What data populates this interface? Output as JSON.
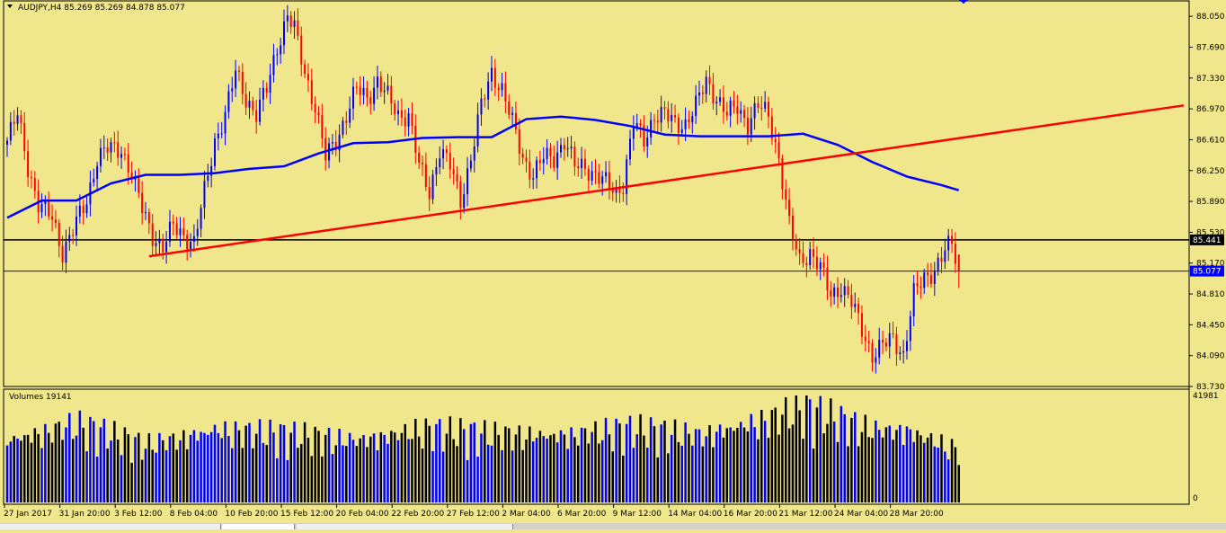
{
  "window": {
    "symbol_header": "AUDJPY,H4  85.269 85.269 84.878 85.077",
    "volume_header": "Volumes 19141"
  },
  "colors": {
    "background": "#f0e68c",
    "bull": "#0000ff",
    "bear": "#ff0000",
    "ma": "#0000ff",
    "trendline": "#ff0000",
    "hline": "#000000",
    "vol_up": "#0000ff",
    "vol_down": "#000000"
  },
  "chart_data": [
    {
      "type": "candlestick",
      "symbol": "AUDJPY",
      "timeframe": "H4",
      "ohlc_header": {
        "open": 85.269,
        "high": 85.269,
        "low": 84.878,
        "close": 85.077
      },
      "y_ticks": [
        "88.050",
        "87.690",
        "87.330",
        "86.970",
        "86.610",
        "86.250",
        "85.890",
        "85.530",
        "85.170",
        "84.810",
        "84.450",
        "84.090",
        "83.730"
      ],
      "ylim": [
        83.73,
        88.23
      ],
      "price_labels": [
        {
          "label": "85.441",
          "value": 85.441,
          "style": "black"
        },
        {
          "label": "85.077",
          "value": 85.077,
          "style": "blue"
        }
      ],
      "x_labels": [
        "27 Jan 2017",
        "31 Jan 20:00",
        "3 Feb 12:00",
        "8 Feb 04:00",
        "10 Feb 20:00",
        "15 Feb 12:00",
        "20 Feb 04:00",
        "22 Feb 20:00",
        "27 Feb 12:00",
        "2 Mar 04:00",
        "6 Mar 20:00",
        "9 Mar 12:00",
        "14 Mar 04:00",
        "16 Mar 20:00",
        "21 Mar 12:00",
        "24 Mar 04:00",
        "28 Mar 20:00"
      ],
      "x_label_index": [
        0,
        16,
        32,
        48,
        64,
        80,
        96,
        112,
        128,
        144,
        160,
        176,
        192,
        208,
        224,
        240,
        256
      ],
      "anchors": [
        [
          0,
          86.6
        ],
        [
          3,
          86.9
        ],
        [
          6,
          86.3
        ],
        [
          9,
          85.85
        ],
        [
          13,
          85.7
        ],
        [
          16,
          85.3
        ],
        [
          19,
          85.55
        ],
        [
          23,
          85.9
        ],
        [
          26,
          86.4
        ],
        [
          29,
          86.5
        ],
        [
          33,
          86.5
        ],
        [
          36,
          86.2
        ],
        [
          39,
          85.8
        ],
        [
          42,
          85.5
        ],
        [
          45,
          85.35
        ],
        [
          48,
          85.6
        ],
        [
          51,
          85.5
        ],
        [
          54,
          85.4
        ],
        [
          57,
          86.0
        ],
        [
          60,
          86.6
        ],
        [
          63,
          86.9
        ],
        [
          66,
          87.4
        ],
        [
          69,
          87.1
        ],
        [
          72,
          86.9
        ],
        [
          75,
          87.2
        ],
        [
          78,
          87.7
        ],
        [
          81,
          88.05
        ],
        [
          83,
          87.9
        ],
        [
          86,
          87.4
        ],
        [
          89,
          87.0
        ],
        [
          92,
          86.4
        ],
        [
          95,
          86.6
        ],
        [
          98,
          86.9
        ],
        [
          101,
          87.2
        ],
        [
          104,
          87.1
        ],
        [
          107,
          87.3
        ],
        [
          110,
          87.1
        ],
        [
          113,
          86.9
        ],
        [
          116,
          86.9
        ],
        [
          119,
          86.3
        ],
        [
          122,
          86.0
        ],
        [
          125,
          86.5
        ],
        [
          128,
          86.3
        ],
        [
          131,
          85.9
        ],
        [
          134,
          86.4
        ],
        [
          137,
          87.0
        ],
        [
          140,
          87.4
        ],
        [
          143,
          87.2
        ],
        [
          146,
          86.8
        ],
        [
          149,
          86.4
        ],
        [
          152,
          86.2
        ],
        [
          155,
          86.4
        ],
        [
          158,
          86.4
        ],
        [
          161,
          86.6
        ],
        [
          164,
          86.3
        ],
        [
          167,
          86.3
        ],
        [
          170,
          86.2
        ],
        [
          173,
          86.1
        ],
        [
          176,
          86.0
        ],
        [
          178,
          86.1
        ],
        [
          181,
          86.8
        ],
        [
          184,
          86.6
        ],
        [
          187,
          86.9
        ],
        [
          190,
          86.9
        ],
        [
          193,
          86.8
        ],
        [
          196,
          86.8
        ],
        [
          199,
          87.0
        ],
        [
          202,
          87.3
        ],
        [
          205,
          87.1
        ],
        [
          208,
          86.9
        ],
        [
          211,
          87.0
        ],
        [
          214,
          86.8
        ],
        [
          217,
          87.0
        ],
        [
          220,
          86.9
        ],
        [
          223,
          86.4
        ],
        [
          226,
          85.6
        ],
        [
          229,
          85.2
        ],
        [
          232,
          85.3
        ],
        [
          235,
          85.1
        ],
        [
          238,
          84.8
        ],
        [
          241,
          84.9
        ],
        [
          244,
          84.7
        ],
        [
          247,
          84.4
        ],
        [
          250,
          84.1
        ],
        [
          253,
          84.2
        ],
        [
          256,
          84.3
        ],
        [
          259,
          84.1
        ],
        [
          262,
          84.8
        ],
        [
          265,
          85.0
        ],
        [
          268,
          85.1
        ],
        [
          271,
          85.3
        ],
        [
          273,
          85.4
        ],
        [
          275,
          85.08
        ]
      ],
      "moving_average": [
        [
          0,
          85.7
        ],
        [
          10,
          85.9
        ],
        [
          20,
          85.9
        ],
        [
          30,
          86.1
        ],
        [
          40,
          86.2
        ],
        [
          50,
          86.2
        ],
        [
          60,
          86.22
        ],
        [
          70,
          86.27
        ],
        [
          80,
          86.3
        ],
        [
          90,
          86.45
        ],
        [
          100,
          86.57
        ],
        [
          110,
          86.58
        ],
        [
          120,
          86.63
        ],
        [
          130,
          86.64
        ],
        [
          140,
          86.64
        ],
        [
          150,
          86.85
        ],
        [
          160,
          86.88
        ],
        [
          170,
          86.84
        ],
        [
          180,
          86.77
        ],
        [
          190,
          86.67
        ],
        [
          200,
          86.65
        ],
        [
          210,
          86.65
        ],
        [
          220,
          86.65
        ],
        [
          230,
          86.68
        ],
        [
          240,
          86.55
        ],
        [
          250,
          86.35
        ],
        [
          260,
          86.18
        ],
        [
          270,
          86.08
        ],
        [
          275,
          86.02
        ]
      ],
      "trendline": {
        "from": [
          41,
          85.25
        ],
        "to": [
          340,
          87.01
        ]
      },
      "volume_scale": {
        "max_label": "41981",
        "min_label": "0",
        "max": 41981
      },
      "volume_anchors": [
        [
          0,
          24000
        ],
        [
          20,
          30000
        ],
        [
          40,
          22000
        ],
        [
          60,
          28000
        ],
        [
          80,
          26000
        ],
        [
          100,
          24000
        ],
        [
          120,
          28000
        ],
        [
          140,
          26000
        ],
        [
          160,
          26000
        ],
        [
          180,
          28000
        ],
        [
          200,
          26000
        ],
        [
          220,
          32000
        ],
        [
          230,
          36000
        ],
        [
          240,
          32000
        ],
        [
          250,
          28000
        ],
        [
          260,
          28000
        ],
        [
          275,
          20000
        ]
      ]
    }
  ]
}
